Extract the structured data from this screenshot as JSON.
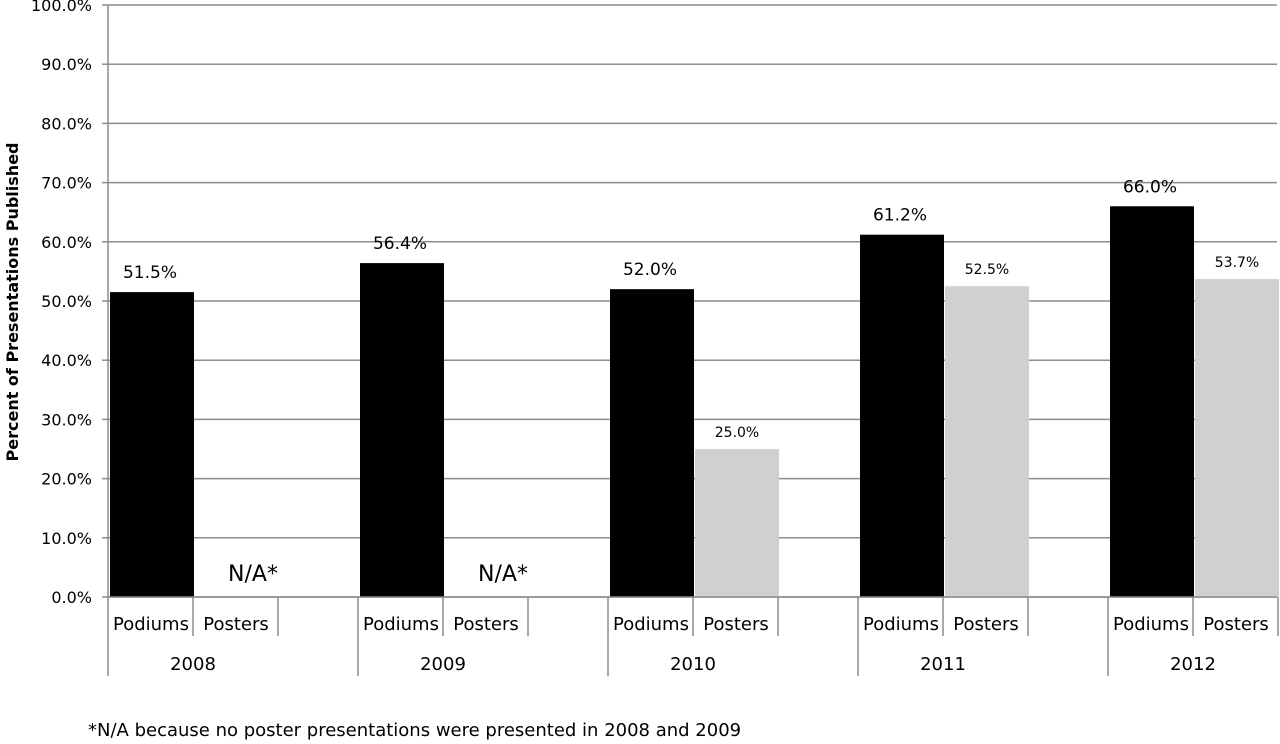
{
  "chart_data": {
    "type": "bar",
    "title": "",
    "xlabel": "",
    "ylabel": "Percent of Presentations Published",
    "ylim": [
      0,
      100
    ],
    "yticks": [
      "0.0%",
      "10.0%",
      "20.0%",
      "30.0%",
      "40.0%",
      "50.0%",
      "60.0%",
      "70.0%",
      "80.0%",
      "90.0%",
      "100.0%"
    ],
    "grid": true,
    "legend": "none",
    "years": [
      "2008",
      "2009",
      "2010",
      "2011",
      "2012"
    ],
    "subcategories": [
      "Podiums",
      "Posters"
    ],
    "series": [
      {
        "name": "Podiums",
        "color": "#000000",
        "values": [
          51.5,
          56.4,
          52.0,
          61.2,
          66.0
        ],
        "labels": [
          "51.5%",
          "56.4%",
          "52.0%",
          "61.2%",
          "66.0%"
        ]
      },
      {
        "name": "Posters",
        "color": "#d0d0d0",
        "values": [
          null,
          null,
          25.0,
          52.5,
          53.7
        ],
        "labels": [
          "N/A*",
          "N/A*",
          "25.0%",
          "52.5%",
          "53.7%"
        ]
      }
    ]
  },
  "footnote": "*N/A because no poster presentations were presented in 2008 and 2009"
}
